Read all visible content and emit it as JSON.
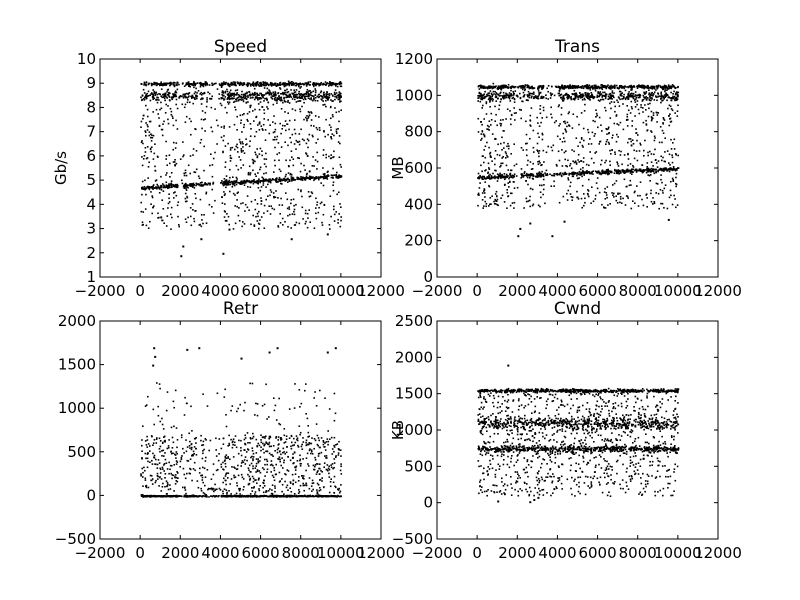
{
  "chart_data": [
    {
      "type": "scatter",
      "title": "Speed",
      "xlabel": "",
      "ylabel": "Gb/s",
      "xlim": [
        -2000,
        12000
      ],
      "ylim": [
        1,
        10
      ],
      "xticks": [
        "−2000",
        "0",
        "2000",
        "4000",
        "6000",
        "8000",
        "10000",
        "12000"
      ],
      "yticks": [
        "1",
        "2",
        "3",
        "4",
        "5",
        "6",
        "7",
        "8",
        "9",
        "10"
      ],
      "grid": false,
      "approx_point_count": 10000,
      "x_range": [
        0,
        10000
      ],
      "description_model": {
        "bands": [
          {
            "y": 9.0,
            "width": 0.12
          },
          {
            "y": 8.5,
            "width": 0.3
          },
          {
            "y_start": 4.7,
            "y_end": 5.2,
            "width": 0.12
          }
        ],
        "gaps": [
          [
            1850,
            2150
          ],
          [
            2800,
            2950
          ],
          [
            3300,
            4000
          ]
        ],
        "spread_range": [
          3.0,
          9.0
        ],
        "outliers": [
          [
            2000,
            1.9
          ],
          [
            2100,
            2.3
          ],
          [
            3000,
            2.6
          ],
          [
            4100,
            2.0
          ],
          [
            4400,
            3.0
          ],
          [
            7500,
            2.6
          ],
          [
            9300,
            2.8
          ],
          [
            1000,
            3.5
          ]
        ]
      }
    },
    {
      "type": "scatter",
      "title": "Trans",
      "xlabel": "",
      "ylabel": "MB",
      "xlim": [
        -2000,
        12000
      ],
      "ylim": [
        0,
        1200
      ],
      "xticks": [
        "−2000",
        "0",
        "2000",
        "4000",
        "6000",
        "8000",
        "10000",
        "12000"
      ],
      "yticks": [
        "0",
        "200",
        "400",
        "600",
        "800",
        "1000",
        "1200"
      ],
      "grid": false,
      "approx_point_count": 10000,
      "x_range": [
        0,
        10000
      ],
      "description_model": {
        "bands": [
          {
            "y": 1050,
            "width": 15
          },
          {
            "y": 1000,
            "width": 35
          },
          {
            "y_start": 550,
            "y_end": 600,
            "width": 15
          }
        ],
        "gaps": [
          [
            1850,
            2150
          ],
          [
            2800,
            2950
          ],
          [
            3300,
            4000
          ]
        ],
        "spread_range": [
          380,
          1050
        ],
        "outliers": [
          [
            2000,
            230
          ],
          [
            2100,
            270
          ],
          [
            2600,
            300
          ],
          [
            3700,
            230
          ],
          [
            4300,
            310
          ],
          [
            9500,
            320
          ]
        ]
      }
    },
    {
      "type": "scatter",
      "title": "Retr",
      "xlabel": "",
      "ylabel": "",
      "xlim": [
        -2000,
        12000
      ],
      "ylim": [
        -500,
        2000
      ],
      "xticks": [
        "−2000",
        "0",
        "2000",
        "4000",
        "6000",
        "8000",
        "10000",
        "12000"
      ],
      "yticks": [
        "−500",
        "0",
        "500",
        "1000",
        "1500",
        "2000"
      ],
      "grid": false,
      "approx_point_count": 10000,
      "x_range": [
        0,
        10000
      ],
      "description_model": {
        "bands": [
          {
            "y": 0,
            "width": 10
          },
          {
            "y": 80,
            "width": 20,
            "x_range": [
              3300,
              4000
            ]
          }
        ],
        "dense_range": [
          0,
          700
        ],
        "gaps": [
          [
            1850,
            2150
          ],
          [
            2800,
            2950
          ],
          [
            3300,
            4000
          ]
        ],
        "spread_range": [
          0,
          1300
        ],
        "outliers": [
          [
            650,
            1700
          ],
          [
            700,
            1600
          ],
          [
            2300,
            1680
          ],
          [
            2900,
            1700
          ],
          [
            5000,
            1580
          ],
          [
            6400,
            1650
          ],
          [
            6800,
            1700
          ],
          [
            9300,
            1650
          ],
          [
            9700,
            1700
          ],
          [
            600,
            1500
          ]
        ]
      }
    },
    {
      "type": "scatter",
      "title": "Cwnd",
      "xlabel": "",
      "ylabel": "KB",
      "xlim": [
        -2000,
        12000
      ],
      "ylim": [
        -500,
        2500
      ],
      "xticks": [
        "−2000",
        "0",
        "2000",
        "4000",
        "6000",
        "8000",
        "10000",
        "12000"
      ],
      "yticks": [
        "−500",
        "0",
        "500",
        "1000",
        "1500",
        "2000",
        "2500"
      ],
      "grid": false,
      "approx_point_count": 10000,
      "x_range": [
        0,
        10000
      ],
      "description_model": {
        "bands": [
          {
            "y": 1550,
            "width": 30
          },
          {
            "y": 1100,
            "width": 120
          },
          {
            "y": 750,
            "width": 60
          }
        ],
        "gaps": [],
        "spread_range": [
          100,
          1580
        ],
        "outliers": [
          [
            1500,
            1900
          ],
          [
            2600,
            20
          ],
          [
            2800,
            50
          ],
          [
            3000,
            80
          ],
          [
            1000,
            30
          ],
          [
            3800,
            200
          ]
        ]
      }
    }
  ]
}
